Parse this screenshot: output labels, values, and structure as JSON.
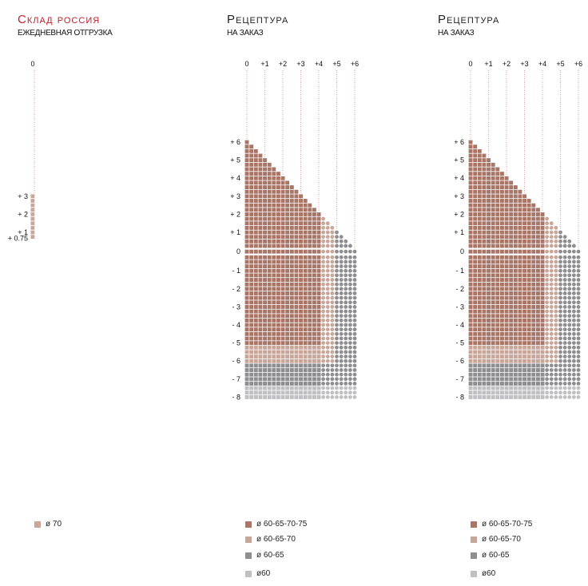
{
  "panels": [
    {
      "title": "Склад россия",
      "title_color": "#c0202a",
      "subtitle": "ЕЖЕДНЕВНАЯ ОТГРУЗКА"
    },
    {
      "title": "Рецептура",
      "title_color": "#222222",
      "subtitle": "НА ЗАКАЗ"
    },
    {
      "title": "Рецептура",
      "title_color": "#222222",
      "subtitle": "НА ЗАКАЗ"
    }
  ],
  "legend_left": [
    {
      "label": "ø 70",
      "color": "#c9a69a"
    }
  ],
  "legend": [
    {
      "label": "ø 60-65-70-75",
      "color": "#a87567"
    },
    {
      "label": "ø 60-65-70",
      "color": "#c9a69a"
    },
    {
      "label": "ø 60-65",
      "color": "#8e8e90"
    },
    {
      "label": "ø60",
      "color": "#c0c0c2"
    }
  ],
  "chart_data": [
    {
      "type": "heatmap",
      "title": "Склад россия",
      "x_tick_labels": [
        "0"
      ],
      "y_tick_labels": [
        "+ 3",
        "+ 2",
        "+ 1",
        "+ 0.75"
      ],
      "y_tick_values": [
        3,
        2,
        1,
        0.75
      ],
      "cylinder_values": [
        0
      ],
      "sphere_range": [
        0.75,
        3
      ],
      "step": 0.25,
      "zone": 1
    },
    {
      "type": "heatmap",
      "title": "Рецептура",
      "x_tick_labels": [
        "0",
        "+1",
        "+2",
        "+3",
        "+4",
        "+5",
        "+6"
      ],
      "y_tick_labels": [
        "+ 6",
        "+ 5",
        "+ 4",
        "+ 3",
        "+ 2",
        "+ 1",
        "0",
        "- 1",
        "- 2",
        "- 3",
        "- 4",
        "- 5",
        "- 6",
        "- 7",
        "- 8"
      ],
      "y_tick_values": [
        6,
        5,
        4,
        3,
        2,
        1,
        0,
        -1,
        -2,
        -3,
        -4,
        -5,
        -6,
        -7,
        -8
      ],
      "cylinder_range": [
        0,
        6
      ],
      "sphere_range": [
        -8,
        6
      ],
      "step": 0.25,
      "rule": "available where sphere <= 6 - cylinder; cylinder > 4 shown as dots",
      "zones": {
        "square_cyl_max": 4,
        "light_cyl_max": 4.75,
        "zone0_sph_min": -5,
        "zone1_sph_min": -6,
        "zone2_sph_min": -7.25
      }
    },
    {
      "type": "heatmap",
      "title": "Рецептура",
      "x_tick_labels": [
        "0",
        "+1",
        "+2",
        "+3",
        "+4",
        "+5",
        "+6"
      ],
      "y_tick_labels": [
        "+ 6",
        "+ 5",
        "+ 4",
        "+ 3",
        "+ 2",
        "+ 1",
        "0",
        "- 1",
        "- 2",
        "- 3",
        "- 4",
        "- 5",
        "- 6",
        "- 7",
        "- 8"
      ],
      "y_tick_values": [
        6,
        5,
        4,
        3,
        2,
        1,
        0,
        -1,
        -2,
        -3,
        -4,
        -5,
        -6,
        -7,
        -8
      ],
      "cylinder_range": [
        0,
        6
      ],
      "sphere_range": [
        -8,
        6
      ],
      "step": 0.25,
      "rule": "available where sphere <= 6 - cylinder; cylinder > 4 shown as dots",
      "zones": {
        "square_cyl_max": 4,
        "light_cyl_max": 4.75,
        "zone0_sph_min": -5,
        "zone1_sph_min": -6,
        "zone2_sph_min": -7.25
      }
    }
  ]
}
